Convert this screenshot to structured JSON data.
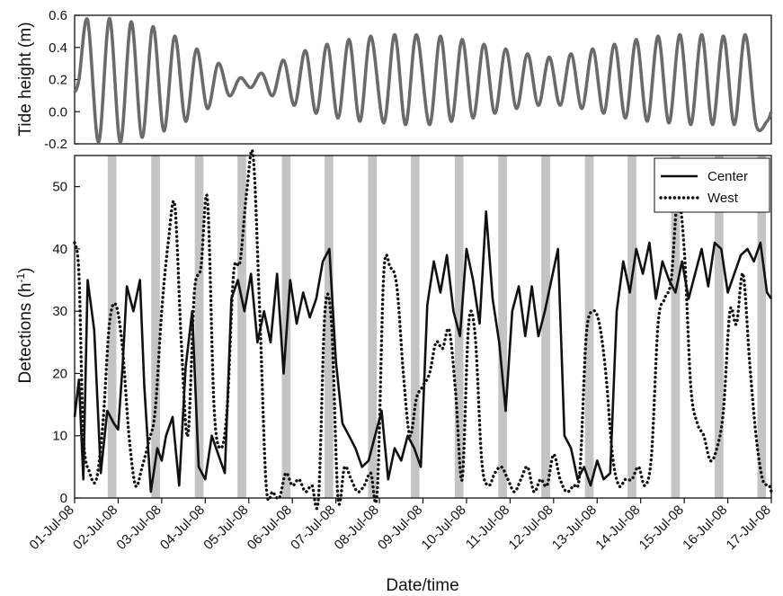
{
  "chart_data": [
    {
      "panel": "top",
      "type": "line",
      "ylabel": "Tide height (m)",
      "ylim": [
        -0.2,
        0.6
      ],
      "yticks": [
        "0.6",
        "0.4",
        "0.2",
        "0.0",
        "-0.2"
      ],
      "xlim": [
        0,
        16
      ],
      "grid": false,
      "series": [
        {
          "color": "#6a6a6a",
          "x": [
            0,
            0.1,
            0.3,
            0.55,
            0.8,
            1.05,
            1.3,
            1.55,
            1.8,
            2.05,
            2.3,
            2.55,
            2.8,
            3.05,
            3.3,
            3.55,
            3.8,
            4.05,
            4.3,
            4.55,
            4.8,
            5.05,
            5.3,
            5.55,
            5.8,
            6.05,
            6.3,
            6.55,
            6.8,
            7.1,
            7.35,
            7.6,
            7.85,
            8.15,
            8.4,
            8.65,
            8.9,
            9.15,
            9.4,
            9.65,
            9.9,
            10.15,
            10.4,
            10.65,
            10.9,
            11.15,
            11.4,
            11.65,
            11.9,
            12.15,
            12.4,
            12.65,
            12.9,
            13.15,
            13.4,
            13.65,
            13.9,
            14.15,
            14.4,
            14.65,
            14.9,
            15.15,
            15.4,
            15.65,
            15.9,
            16
          ],
          "values": [
            0.12,
            0.2,
            0.57,
            -0.19,
            0.58,
            -0.19,
            0.56,
            -0.16,
            0.53,
            -0.12,
            0.47,
            -0.06,
            0.39,
            0.02,
            0.3,
            0.1,
            0.21,
            0.15,
            0.24,
            0.1,
            0.32,
            0.04,
            0.38,
            -0.01,
            0.42,
            -0.04,
            0.45,
            -0.06,
            0.47,
            -0.07,
            0.48,
            -0.08,
            0.48,
            -0.08,
            0.47,
            -0.06,
            0.45,
            -0.04,
            0.42,
            -0.01,
            0.39,
            0.02,
            0.36,
            0.04,
            0.34,
            0.04,
            0.36,
            0.02,
            0.39,
            -0.01,
            0.42,
            -0.04,
            0.45,
            -0.06,
            0.47,
            -0.07,
            0.48,
            -0.08,
            0.48,
            -0.08,
            0.47,
            -0.08,
            0.48,
            -0.08,
            -0.06,
            0.0
          ]
        }
      ]
    },
    {
      "panel": "bottom",
      "type": "line",
      "xlabel": "Date/time",
      "ylabel_main": "Detections (h",
      "ylabel_sup": "-1",
      "ylabel_end": ")",
      "ylim": [
        0,
        55
      ],
      "yticks": [
        "50",
        "40",
        "30",
        "20",
        "10",
        "0"
      ],
      "xlim": [
        0,
        16
      ],
      "categories": [
        "01-Jul-08",
        "02-Jul-08",
        "03-Jul-08",
        "04-Jul-08",
        "05-Jul-08",
        "06-Jul-08",
        "07-Jul-08",
        "08-Jul-08",
        "09-Jul-08",
        "10-Jul-08",
        "11-Jul-08",
        "12-Jul-08",
        "13-Jul-08",
        "14-Jul-08",
        "15-Jul-08",
        "16-Jul-08",
        "17-Jul-08"
      ],
      "night_shading": [
        [
          0.76,
          0.96
        ],
        [
          1.76,
          1.96
        ],
        [
          2.76,
          2.96
        ],
        [
          3.74,
          3.94
        ],
        [
          4.76,
          4.96
        ],
        [
          5.74,
          5.94
        ],
        [
          6.74,
          6.94
        ],
        [
          7.72,
          7.92
        ],
        [
          8.73,
          8.93
        ],
        [
          9.73,
          9.93
        ],
        [
          10.72,
          10.92
        ],
        [
          11.72,
          11.92
        ],
        [
          12.7,
          12.9
        ],
        [
          13.7,
          13.9
        ],
        [
          14.7,
          14.9
        ],
        [
          15.68,
          15.88
        ]
      ],
      "legend_position": "top-right",
      "legend": [
        "Center",
        "West"
      ],
      "series": [
        {
          "name": "Center",
          "style": "solid",
          "color": "#111111",
          "x": [
            0,
            0.1,
            0.2,
            0.3,
            0.45,
            0.6,
            0.75,
            0.9,
            1.0,
            1.1,
            1.2,
            1.35,
            1.5,
            1.6,
            1.75,
            1.9,
            2.0,
            2.1,
            2.25,
            2.4,
            2.55,
            2.7,
            2.85,
            3.0,
            3.15,
            3.3,
            3.45,
            3.6,
            3.75,
            3.9,
            4.05,
            4.2,
            4.35,
            4.5,
            4.65,
            4.8,
            4.95,
            5.1,
            5.25,
            5.4,
            5.55,
            5.7,
            5.85,
            6.0,
            6.15,
            6.3,
            6.45,
            6.6,
            6.75,
            6.9,
            7.05,
            7.2,
            7.35,
            7.5,
            7.65,
            7.8,
            7.95,
            8.1,
            8.25,
            8.4,
            8.55,
            8.7,
            8.85,
            9.0,
            9.15,
            9.3,
            9.45,
            9.6,
            9.75,
            9.9,
            10.05,
            10.2,
            10.35,
            10.5,
            10.65,
            10.8,
            10.95,
            11.1,
            11.25,
            11.4,
            11.55,
            11.7,
            11.85,
            12.0,
            12.15,
            12.3,
            12.45,
            12.6,
            12.75,
            12.9,
            13.05,
            13.2,
            13.35,
            13.5,
            13.65,
            13.8,
            13.95,
            14.1,
            14.25,
            14.4,
            14.55,
            14.7,
            14.85,
            15.0,
            15.15,
            15.3,
            15.45,
            15.6,
            15.75,
            15.9,
            16.0
          ],
          "values": [
            13,
            19,
            3,
            35,
            27,
            4,
            14,
            12,
            11,
            21,
            34,
            30,
            35,
            18,
            1,
            8,
            6,
            10,
            13,
            2,
            21,
            30,
            5,
            3,
            10,
            7,
            4,
            32,
            35,
            30,
            36,
            25,
            30,
            25,
            36,
            20,
            35,
            28,
            33,
            29,
            32,
            38,
            40,
            22,
            12,
            10,
            8,
            5,
            6,
            10,
            14,
            3,
            8,
            6,
            10,
            8,
            5,
            31,
            38,
            33,
            39,
            30,
            26,
            40,
            35,
            28,
            46,
            32,
            25,
            14,
            30,
            34,
            26,
            34,
            26,
            30,
            35,
            40,
            10,
            8,
            3,
            5,
            2,
            6,
            3,
            4,
            30,
            38,
            33,
            40,
            36,
            41,
            32,
            38,
            35,
            33,
            38,
            32,
            36,
            40,
            34,
            41,
            40,
            33,
            36,
            39,
            40,
            38,
            41,
            33,
            32
          ]
        },
        {
          "name": "West",
          "style": "dotted",
          "color": "#111111",
          "x": [
            0,
            0.1,
            0.2,
            0.35,
            0.5,
            0.65,
            0.8,
            0.95,
            1.1,
            1.25,
            1.4,
            1.55,
            1.7,
            1.85,
            2.0,
            2.15,
            2.3,
            2.45,
            2.6,
            2.75,
            2.9,
            3.05,
            3.2,
            3.35,
            3.5,
            3.65,
            3.8,
            3.95,
            4.1,
            4.25,
            4.4,
            4.55,
            4.7,
            4.85,
            5.0,
            5.15,
            5.3,
            5.45,
            5.6,
            5.75,
            5.9,
            6.05,
            6.2,
            6.35,
            6.5,
            6.65,
            6.8,
            6.95,
            7.1,
            7.25,
            7.4,
            7.55,
            7.7,
            7.85,
            8.0,
            8.15,
            8.3,
            8.45,
            8.6,
            8.75,
            8.9,
            9.05,
            9.2,
            9.35,
            9.5,
            9.65,
            9.8,
            9.95,
            10.1,
            10.25,
            10.4,
            10.55,
            10.7,
            10.85,
            11.0,
            11.15,
            11.3,
            11.45,
            11.6,
            11.75,
            11.9,
            12.05,
            12.2,
            12.35,
            12.5,
            12.65,
            12.8,
            12.95,
            13.1,
            13.25,
            13.4,
            13.55,
            13.7,
            13.85,
            14.0,
            14.15,
            14.3,
            14.45,
            14.6,
            14.75,
            14.9,
            15.05,
            15.2,
            15.35,
            15.5,
            15.65,
            15.8,
            15.95,
            16.0
          ],
          "values": [
            41,
            36,
            10,
            4,
            3,
            12,
            28,
            31,
            24,
            10,
            2,
            5,
            9,
            14,
            30,
            41,
            47,
            25,
            10,
            33,
            37,
            48,
            15,
            8,
            14,
            36,
            38,
            49,
            55,
            30,
            2,
            1,
            0,
            4,
            2,
            3,
            1,
            2,
            0,
            30,
            28,
            0,
            5,
            3,
            1,
            2,
            4,
            1,
            36,
            37,
            34,
            20,
            10,
            16,
            18,
            20,
            25,
            24,
            27,
            17,
            3,
            28,
            26,
            6,
            2,
            4,
            5,
            3,
            1,
            3,
            5,
            1,
            3,
            2,
            7,
            3,
            1,
            2,
            4,
            26,
            30,
            28,
            20,
            7,
            2,
            3,
            3,
            5,
            2,
            7,
            28,
            32,
            35,
            48,
            40,
            18,
            12,
            10,
            6,
            8,
            14,
            30,
            28,
            36,
            22,
            10,
            3,
            2,
            1
          ]
        }
      ]
    }
  ]
}
